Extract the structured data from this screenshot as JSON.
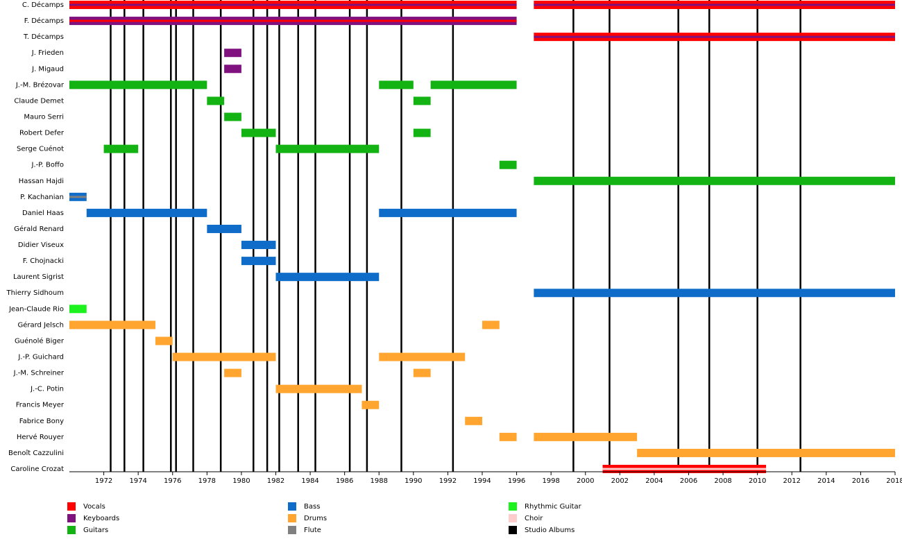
{
  "chart_data": {
    "type": "timeline",
    "xlim": [
      1970,
      2018
    ],
    "xticks": [
      1972,
      1974,
      1976,
      1978,
      1980,
      1982,
      1984,
      1986,
      1988,
      1990,
      1992,
      1994,
      1996,
      1998,
      2000,
      2002,
      2004,
      2006,
      2008,
      2010,
      2012,
      2014,
      2016,
      2018
    ],
    "roles": [
      {
        "name": "Vocals",
        "color": "#ff0000"
      },
      {
        "name": "Keyboards",
        "color": "#7f127f"
      },
      {
        "name": "Guitars",
        "color": "#14b314"
      },
      {
        "name": "Bass",
        "color": "#0f6cc8"
      },
      {
        "name": "Drums",
        "color": "#ffa530"
      },
      {
        "name": "Flute",
        "color": "#808080"
      },
      {
        "name": "Rhythmic Guitar",
        "color": "#1ef21e"
      },
      {
        "name": "Choir",
        "color": "#ffcccc"
      }
    ],
    "albums": {
      "name": "Studio Albums",
      "color": "#000000",
      "values": [
        1972.4,
        1973.2,
        1974.3,
        1975.9,
        1976.2,
        1977.2,
        1978.8,
        1980.7,
        1981.5,
        1982.2,
        1983.3,
        1984.3,
        1986.3,
        1987.3,
        1989.3,
        1992.3,
        1999.3,
        2001.4,
        2005.4,
        2007.2,
        2010.0,
        2012.5
      ]
    },
    "members": [
      {
        "name": "C. Décamps",
        "bars": [
          {
            "roles": [
              "Vocals",
              "Keyboards"
            ],
            "start": 1970,
            "end": 1996
          },
          {
            "roles": [
              "Vocals",
              "Keyboards"
            ],
            "start": 1997,
            "end": 2018
          }
        ]
      },
      {
        "name": "F. Décamps",
        "bars": [
          {
            "roles": [
              "Keyboards",
              "Vocals"
            ],
            "start": 1970,
            "end": 1996
          }
        ]
      },
      {
        "name": "T. Décamps",
        "bars": [
          {
            "roles": [
              "Vocals",
              "Keyboards"
            ],
            "start": 1997,
            "end": 2018
          }
        ]
      },
      {
        "name": "J. Frieden",
        "bars": [
          {
            "roles": [
              "Keyboards"
            ],
            "start": 1979,
            "end": 1980
          }
        ]
      },
      {
        "name": "J. Migaud",
        "bars": [
          {
            "roles": [
              "Keyboards"
            ],
            "start": 1979,
            "end": 1980
          }
        ]
      },
      {
        "name": "J.-M. Brézovar",
        "bars": [
          {
            "roles": [
              "Guitars"
            ],
            "start": 1970,
            "end": 1978
          },
          {
            "roles": [
              "Guitars"
            ],
            "start": 1988,
            "end": 1990
          },
          {
            "roles": [
              "Guitars"
            ],
            "start": 1991,
            "end": 1996
          }
        ]
      },
      {
        "name": "Claude Demet",
        "bars": [
          {
            "roles": [
              "Guitars"
            ],
            "start": 1978,
            "end": 1979
          },
          {
            "roles": [
              "Guitars"
            ],
            "start": 1990,
            "end": 1991
          }
        ]
      },
      {
        "name": "Mauro Serri",
        "bars": [
          {
            "roles": [
              "Guitars"
            ],
            "start": 1979,
            "end": 1980
          }
        ]
      },
      {
        "name": "Robert Defer",
        "bars": [
          {
            "roles": [
              "Guitars"
            ],
            "start": 1980,
            "end": 1982
          },
          {
            "roles": [
              "Guitars"
            ],
            "start": 1990,
            "end": 1991
          }
        ]
      },
      {
        "name": "Serge Cuénot",
        "bars": [
          {
            "roles": [
              "Guitars"
            ],
            "start": 1972,
            "end": 1974
          },
          {
            "roles": [
              "Guitars"
            ],
            "start": 1982,
            "end": 1988
          }
        ]
      },
      {
        "name": "J.-P. Boffo",
        "bars": [
          {
            "roles": [
              "Guitars"
            ],
            "start": 1995,
            "end": 1996
          }
        ]
      },
      {
        "name": "Hassan Hajdi",
        "bars": [
          {
            "roles": [
              "Guitars"
            ],
            "start": 1997,
            "end": 2018
          }
        ]
      },
      {
        "name": "P. Kachanian",
        "bars": [
          {
            "roles": [
              "Bass",
              "Flute"
            ],
            "start": 1970,
            "end": 1971
          }
        ]
      },
      {
        "name": "Daniel Haas",
        "bars": [
          {
            "roles": [
              "Bass"
            ],
            "start": 1971,
            "end": 1978
          },
          {
            "roles": [
              "Bass"
            ],
            "start": 1988,
            "end": 1996
          }
        ]
      },
      {
        "name": "Gérald Renard",
        "bars": [
          {
            "roles": [
              "Bass"
            ],
            "start": 1978,
            "end": 1980
          }
        ]
      },
      {
        "name": "Didier Viseux",
        "bars": [
          {
            "roles": [
              "Bass"
            ],
            "start": 1980,
            "end": 1982
          }
        ]
      },
      {
        "name": "F. Chojnacki",
        "bars": [
          {
            "roles": [
              "Bass"
            ],
            "start": 1980,
            "end": 1982
          }
        ]
      },
      {
        "name": "Laurent Sigrist",
        "bars": [
          {
            "roles": [
              "Bass"
            ],
            "start": 1982,
            "end": 1988
          }
        ]
      },
      {
        "name": "Thierry Sidhoum",
        "bars": [
          {
            "roles": [
              "Bass"
            ],
            "start": 1997,
            "end": 2018
          }
        ]
      },
      {
        "name": "Jean-Claude Rio",
        "bars": [
          {
            "roles": [
              "Rhythmic Guitar"
            ],
            "start": 1970,
            "end": 1971
          }
        ]
      },
      {
        "name": "Gérard Jelsch",
        "bars": [
          {
            "roles": [
              "Drums"
            ],
            "start": 1970,
            "end": 1975
          },
          {
            "roles": [
              "Drums"
            ],
            "start": 1994,
            "end": 1995
          }
        ]
      },
      {
        "name": "Guénolé Biger",
        "bars": [
          {
            "roles": [
              "Drums"
            ],
            "start": 1975,
            "end": 1976
          }
        ]
      },
      {
        "name": "J.-P. Guichard",
        "bars": [
          {
            "roles": [
              "Drums"
            ],
            "start": 1976,
            "end": 1982
          },
          {
            "roles": [
              "Drums"
            ],
            "start": 1988,
            "end": 1993
          }
        ]
      },
      {
        "name": "J.-M. Schreiner",
        "bars": [
          {
            "roles": [
              "Drums"
            ],
            "start": 1979,
            "end": 1980
          },
          {
            "roles": [
              "Drums"
            ],
            "start": 1990,
            "end": 1991
          }
        ]
      },
      {
        "name": "J.-C. Potin",
        "bars": [
          {
            "roles": [
              "Drums"
            ],
            "start": 1982,
            "end": 1987
          }
        ]
      },
      {
        "name": "Francis Meyer",
        "bars": [
          {
            "roles": [
              "Drums"
            ],
            "start": 1987,
            "end": 1988
          }
        ]
      },
      {
        "name": "Fabrice Bony",
        "bars": [
          {
            "roles": [
              "Drums"
            ],
            "start": 1993,
            "end": 1994
          }
        ]
      },
      {
        "name": "Hervé Rouyer",
        "bars": [
          {
            "roles": [
              "Drums"
            ],
            "start": 1995,
            "end": 1996
          },
          {
            "roles": [
              "Drums"
            ],
            "start": 1997,
            "end": 2003
          }
        ]
      },
      {
        "name": "Benoît Cazzulini",
        "bars": [
          {
            "roles": [
              "Drums"
            ],
            "start": 2003,
            "end": 2018
          }
        ]
      },
      {
        "name": "Caroline Crozat",
        "bars": [
          {
            "roles": [
              "Vocals",
              "Choir"
            ],
            "start": 2001,
            "end": 2010.5
          }
        ]
      }
    ]
  }
}
